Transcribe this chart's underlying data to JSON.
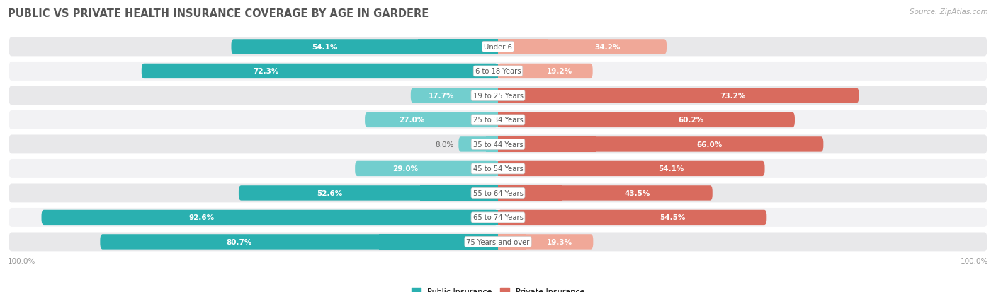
{
  "title": "PUBLIC VS PRIVATE HEALTH INSURANCE COVERAGE BY AGE IN GARDERE",
  "source": "Source: ZipAtlas.com",
  "categories": [
    "Under 6",
    "6 to 18 Years",
    "19 to 25 Years",
    "25 to 34 Years",
    "35 to 44 Years",
    "45 to 54 Years",
    "55 to 64 Years",
    "65 to 74 Years",
    "75 Years and over"
  ],
  "public_values": [
    54.1,
    72.3,
    17.7,
    27.0,
    8.0,
    29.0,
    52.6,
    92.6,
    80.7
  ],
  "private_values": [
    34.2,
    19.2,
    73.2,
    60.2,
    66.0,
    54.1,
    43.5,
    54.5,
    19.3
  ],
  "public_color_dark": "#2ab0b0",
  "public_color_light": "#72cece",
  "private_color_dark": "#d96b5e",
  "private_color_light": "#f0a898",
  "row_bg_odd": "#e8e8ea",
  "row_bg_even": "#f2f2f4",
  "title_color": "#555555",
  "source_color": "#aaaaaa",
  "axis_label_color": "#999999",
  "value_label_color_inside": "#ffffff",
  "value_label_color_outside": "#666666",
  "category_label_color": "#555555",
  "max_val": 100.0,
  "legend_public": "Public Insurance",
  "legend_private": "Private Insurance",
  "pub_inside_threshold": 15,
  "priv_inside_threshold": 15
}
